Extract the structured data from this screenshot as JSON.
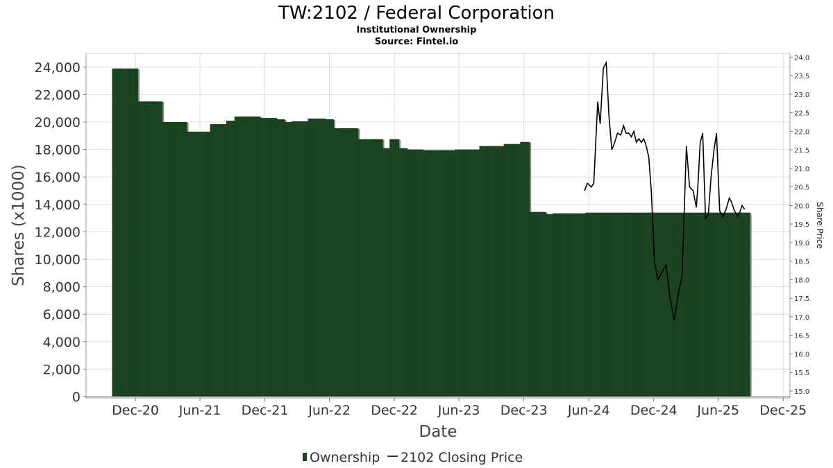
{
  "colors": {
    "bar": "#1b4322",
    "bar_shadow": "#8a8a8a",
    "price_line": "#000000",
    "grid": "#dcdcdc"
  },
  "chart_data": {
    "type": "bar",
    "title": "TW:2102 / Federal Corporation",
    "subtitle_lines": [
      "Institutional Ownership",
      "Source: Fintel.io"
    ],
    "xlabel": "Date",
    "ylabel": "Shares (x1000)",
    "y2label": "Share Price",
    "ylim": [
      0,
      25000
    ],
    "y_ticks": [
      0,
      2000,
      4000,
      6000,
      8000,
      10000,
      12000,
      14000,
      16000,
      18000,
      20000,
      22000,
      24000
    ],
    "y_tick_labels": [
      "0",
      "2,000",
      "4,000",
      "6,000",
      "8,000",
      "10,000",
      "12,000",
      "14,000",
      "16,000",
      "18,000",
      "20,000",
      "22,000",
      "24,000"
    ],
    "y2lim": [
      14.85,
      24.1
    ],
    "y2_ticks": [
      15.0,
      15.5,
      16.0,
      16.5,
      17.0,
      17.5,
      18.0,
      18.5,
      19.0,
      19.5,
      20.0,
      20.5,
      21.0,
      21.5,
      22.0,
      22.5,
      23.0,
      23.5,
      24.0
    ],
    "y2_tick_labels": [
      "15.0",
      "15.5",
      "16.0",
      "16.5",
      "17.0",
      "17.5",
      "18.0",
      "18.5",
      "19.0",
      "19.5",
      "20.0",
      "20.5",
      "21.0",
      "21.5",
      "22.0",
      "22.5",
      "23.0",
      "23.5",
      "24.0"
    ],
    "x_range": [
      "2020-07-15",
      "2025-12-20"
    ],
    "x_ticks": [
      "2020-12-01",
      "2021-06-01",
      "2021-12-01",
      "2022-06-01",
      "2022-12-01",
      "2023-06-01",
      "2023-12-01",
      "2024-06-01",
      "2024-12-01",
      "2025-06-01",
      "2025-12-01"
    ],
    "x_tick_labels": [
      "Dec-20",
      "Jun-21",
      "Dec-21",
      "Jun-22",
      "Dec-22",
      "Jun-23",
      "Dec-23",
      "Jun-24",
      "Dec-24",
      "Jun-25",
      "Dec-25"
    ],
    "grid": true,
    "legend_position": "bottom-center",
    "series": [
      {
        "name": "Ownership",
        "type": "bar",
        "x": [
          "2020-10-10",
          "2020-11-02",
          "2020-11-25",
          "2020-12-18",
          "2021-01-10",
          "2021-02-02",
          "2021-02-25",
          "2021-03-20",
          "2021-04-12",
          "2021-05-05",
          "2021-05-28",
          "2021-06-20",
          "2021-07-13",
          "2021-08-05",
          "2021-08-28",
          "2021-09-20",
          "2021-10-13",
          "2021-11-05",
          "2021-11-28",
          "2021-12-21",
          "2022-01-13",
          "2022-02-05",
          "2022-02-28",
          "2022-03-23",
          "2022-04-15",
          "2022-05-08",
          "2022-05-31",
          "2022-06-23",
          "2022-07-16",
          "2022-08-08",
          "2022-08-31",
          "2022-09-23",
          "2022-10-16",
          "2022-11-08",
          "2022-12-01",
          "2022-12-24",
          "2023-01-16",
          "2023-02-08",
          "2023-03-03",
          "2023-03-26",
          "2023-04-18",
          "2023-05-11",
          "2023-06-03",
          "2023-06-26",
          "2023-07-19",
          "2023-08-11",
          "2023-09-03",
          "2023-09-26",
          "2023-10-19",
          "2023-11-11",
          "2023-12-04",
          "2023-12-27",
          "2024-01-19",
          "2024-02-11",
          "2024-03-05",
          "2024-03-28",
          "2024-04-20",
          "2024-05-13",
          "2024-06-05",
          "2024-06-28",
          "2024-07-21",
          "2024-08-13",
          "2024-09-05",
          "2024-09-28",
          "2024-10-21",
          "2024-11-13",
          "2024-12-06",
          "2024-12-29",
          "2025-01-21",
          "2025-02-13",
          "2025-03-08",
          "2025-03-31",
          "2025-04-23",
          "2025-05-16",
          "2025-06-08",
          "2025-07-01",
          "2025-07-24",
          "2025-08-16"
        ],
        "values": [
          23900,
          23900,
          23900,
          21500,
          21500,
          21500,
          20000,
          20000,
          20000,
          19300,
          19300,
          19300,
          19850,
          19850,
          20100,
          20400,
          20400,
          20400,
          20300,
          20300,
          20200,
          20000,
          20050,
          20050,
          20250,
          20250,
          20200,
          19550,
          19550,
          19550,
          18750,
          18750,
          18750,
          18100,
          18750,
          18100,
          18000,
          18000,
          17950,
          17950,
          17950,
          17950,
          18000,
          18000,
          18000,
          18250,
          18250,
          18250,
          18400,
          18400,
          18550,
          13450,
          13450,
          13300,
          13350,
          13350,
          13350,
          13350,
          13400,
          13400,
          13400,
          13400,
          13400,
          13400,
          13400,
          13400,
          13400,
          13400,
          13400,
          13400,
          13400,
          13400,
          13400,
          13400,
          13400,
          13400,
          13400,
          13400
        ]
      },
      {
        "name": "2102 Closing Price",
        "type": "line",
        "x": [
          "2024-05-20",
          "2024-05-28",
          "2024-06-08",
          "2024-06-15",
          "2024-06-26",
          "2024-07-03",
          "2024-07-12",
          "2024-07-20",
          "2024-07-28",
          "2024-08-05",
          "2024-08-13",
          "2024-08-21",
          "2024-08-30",
          "2024-09-07",
          "2024-09-14",
          "2024-09-22",
          "2024-09-29",
          "2024-10-06",
          "2024-10-13",
          "2024-10-20",
          "2024-10-27",
          "2024-11-03",
          "2024-11-10",
          "2024-11-17",
          "2024-11-24",
          "2024-12-03",
          "2024-12-13",
          "2024-12-24",
          "2025-01-05",
          "2025-01-16",
          "2025-01-28",
          "2025-02-08",
          "2025-02-19",
          "2025-03-03",
          "2025-03-12",
          "2025-03-22",
          "2025-03-31",
          "2025-04-05",
          "2025-04-11",
          "2025-04-18",
          "2025-04-26",
          "2025-05-04",
          "2025-05-12",
          "2025-05-20",
          "2025-05-27",
          "2025-06-05",
          "2025-06-14",
          "2025-06-23",
          "2025-07-02",
          "2025-07-08",
          "2025-07-15",
          "2025-07-20",
          "2025-07-25",
          "2025-07-31",
          "2025-08-07",
          "2025-08-14"
        ],
        "values": [
          20.4,
          20.6,
          20.5,
          20.6,
          22.8,
          22.2,
          23.7,
          23.85,
          22.4,
          21.5,
          21.7,
          21.95,
          21.9,
          22.15,
          21.95,
          21.95,
          21.85,
          22.0,
          21.7,
          21.8,
          21.7,
          21.8,
          21.6,
          21.3,
          20.4,
          18.5,
          18.0,
          18.2,
          18.4,
          17.5,
          16.9,
          17.6,
          18.1,
          21.6,
          20.5,
          20.4,
          19.95,
          20.6,
          21.7,
          21.95,
          19.65,
          19.75,
          20.8,
          21.5,
          21.95,
          19.85,
          19.7,
          19.9,
          20.2,
          20.1,
          19.9,
          19.8,
          19.7,
          19.8,
          20.0,
          19.9
        ]
      }
    ]
  }
}
